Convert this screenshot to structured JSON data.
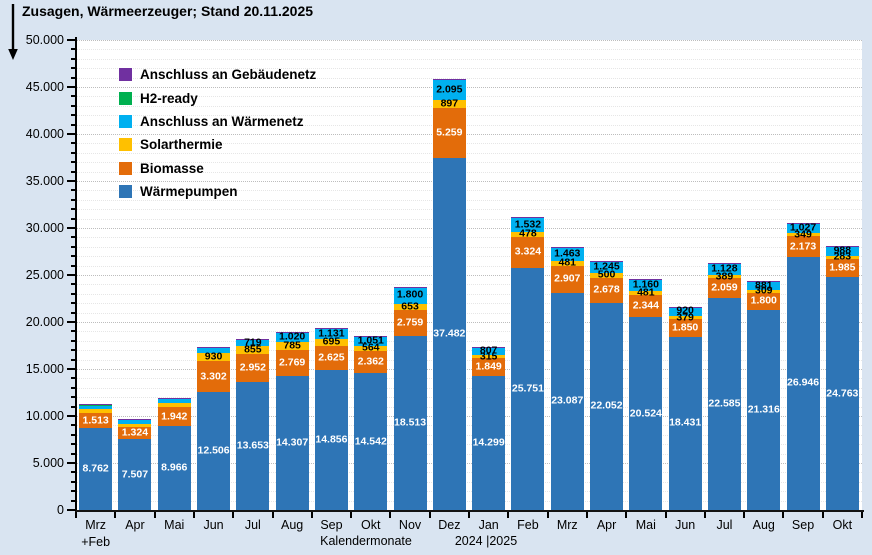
{
  "title": "Zusagen, Wärmeerzeuger; Stand 20.11.2025",
  "chart_data": {
    "type": "bar",
    "stacked": true,
    "title": "Zusagen, Wärmeerzeuger; Stand 20.11.2025",
    "xlabel": "Kalendermonate",
    "x_sub_first": "+Feb",
    "x_years": "2024 |2025",
    "ylim": [
      0,
      50000
    ],
    "y_major_step": 5000,
    "y_minor_step": 1000,
    "y_tick_labels": [
      "0",
      "5.000",
      "10.000",
      "15.000",
      "20.000",
      "25.000",
      "30.000",
      "35.000",
      "40.000",
      "45.000",
      "50.000"
    ],
    "grid": "dotted horizontal",
    "legend_position": "top-left inside plot",
    "categories": [
      "Mrz",
      "Apr",
      "Mai",
      "Jun",
      "Jul",
      "Aug",
      "Sep",
      "Okt",
      "Nov",
      "Dez",
      "Jan",
      "Feb",
      "Mrz",
      "Apr",
      "Mai",
      "Jun",
      "Jul",
      "Aug",
      "Sep",
      "Okt"
    ],
    "legend_order": [
      "gebaeudenetz",
      "h2ready",
      "waermenetz",
      "solarthermie",
      "biomasse",
      "waermepumpen"
    ],
    "series": [
      {
        "key": "waermepumpen",
        "name": "Wärmepumpen",
        "color": "#2E75B6",
        "label_color": "#ffffff",
        "values": [
          8762,
          7507,
          8966,
          12506,
          13653,
          14307,
          14856,
          14542,
          18513,
          37482,
          14299,
          25751,
          23087,
          22052,
          20524,
          18431,
          22585,
          21316,
          26946,
          24763
        ],
        "show_labels": [
          1,
          1,
          1,
          1,
          1,
          1,
          1,
          1,
          1,
          1,
          1,
          1,
          1,
          1,
          1,
          1,
          1,
          1,
          1,
          1
        ]
      },
      {
        "key": "biomasse",
        "name": "Biomasse",
        "color": "#E36C0A",
        "label_color": "#ffffff",
        "values": [
          1513,
          1324,
          1942,
          3302,
          2952,
          2769,
          2625,
          2362,
          2759,
          5259,
          1849,
          3324,
          2907,
          2678,
          2344,
          1850,
          2059,
          1800,
          2173,
          1985
        ],
        "show_labels": [
          1,
          1,
          1,
          1,
          1,
          1,
          1,
          1,
          1,
          1,
          1,
          1,
          1,
          1,
          1,
          1,
          1,
          1,
          1,
          1
        ]
      },
      {
        "key": "solarthermie",
        "name": "Solarthermie",
        "color": "#FFC000",
        "label_color": "#000000",
        "values": [
          430,
          320,
          430,
          930,
          855,
          785,
          695,
          564,
          653,
          897,
          315,
          478,
          481,
          500,
          481,
          379,
          389,
          309,
          349,
          283
        ],
        "show_labels": [
          0,
          0,
          0,
          1,
          1,
          1,
          1,
          1,
          1,
          1,
          1,
          1,
          1,
          1,
          1,
          1,
          1,
          1,
          1,
          1
        ]
      },
      {
        "key": "waermenetz",
        "name": "Anschluss an Wärmenetz",
        "color": "#00B0F0",
        "label_color": "#000000",
        "values": [
          430,
          430,
          530,
          600,
          719,
          1020,
          1131,
          1051,
          1800,
          2095,
          807,
          1532,
          1463,
          1245,
          1160,
          920,
          1128,
          881,
          1027,
          988
        ],
        "show_labels": [
          0,
          0,
          0,
          0,
          1,
          1,
          1,
          1,
          1,
          1,
          1,
          1,
          1,
          1,
          1,
          1,
          1,
          1,
          1,
          1
        ]
      },
      {
        "key": "h2ready",
        "name": "H2-ready",
        "color": "#00B050",
        "label_color": "#000000",
        "values": [
          60,
          0,
          40,
          0,
          0,
          0,
          0,
          0,
          0,
          0,
          0,
          0,
          0,
          0,
          0,
          0,
          0,
          0,
          0,
          0
        ],
        "show_labels": [
          0,
          0,
          0,
          0,
          0,
          0,
          0,
          0,
          0,
          0,
          0,
          0,
          0,
          0,
          0,
          0,
          0,
          0,
          0,
          0
        ]
      },
      {
        "key": "gebaeudenetz",
        "name": "Anschluss an Gebäudenetz",
        "color": "#7030A0",
        "label_color": "#000000",
        "values": [
          90,
          60,
          60,
          50,
          40,
          30,
          30,
          30,
          40,
          120,
          30,
          60,
          60,
          50,
          40,
          40,
          70,
          30,
          40,
          30
        ],
        "show_labels": [
          0,
          0,
          0,
          0,
          0,
          0,
          0,
          0,
          0,
          0,
          0,
          0,
          0,
          0,
          0,
          0,
          0,
          0,
          0,
          0
        ]
      }
    ]
  }
}
